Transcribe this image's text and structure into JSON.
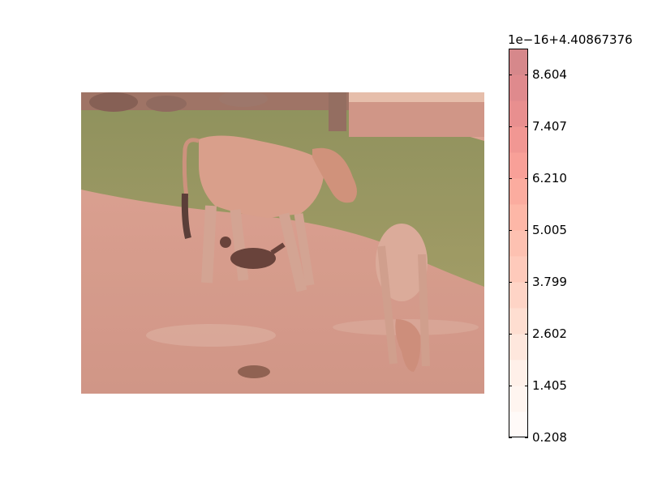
{
  "chart_data": {
    "type": "heatmap",
    "description_kind": "image with colorbar",
    "colormap": "Reds",
    "alpha": 0.5,
    "colorbar": {
      "offset_text": "1e−16+4.40867376",
      "ticks": [
        "8.604",
        "7.407",
        "6.210",
        "5.005",
        "3.799",
        "2.602",
        "1.405",
        "0.208"
      ],
      "tick_values": [
        8.604,
        7.407,
        6.21,
        5.005,
        3.799,
        2.602,
        1.405,
        0.208
      ],
      "range": [
        0.208,
        9.2
      ],
      "levels": 15
    }
  }
}
